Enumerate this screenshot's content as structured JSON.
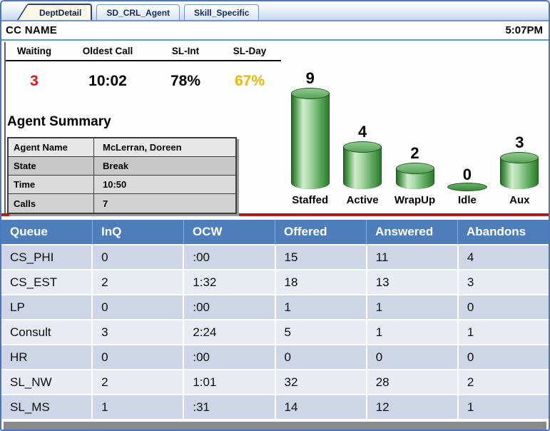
{
  "tabs": [
    {
      "label": "DeptDetail",
      "active": true
    },
    {
      "label": "SD_CRL_Agent",
      "active": false
    },
    {
      "label": "Skill_Specific",
      "active": false
    }
  ],
  "title_bar": {
    "title": "CC NAME",
    "time": "5:07PM"
  },
  "stats": {
    "columns": [
      {
        "label": "Waiting",
        "value": "3",
        "value_color": "#e01414"
      },
      {
        "label": "Oldest Call",
        "value": "10:02",
        "value_color": "#000000"
      },
      {
        "label": "SL-Int",
        "value": "78%",
        "value_color": "#000000"
      },
      {
        "label": "SL-Day",
        "value": "67%",
        "value_color": "#f0b400"
      }
    ]
  },
  "agent_summary": {
    "title": "Agent Summary",
    "rows": [
      {
        "label": "Agent Name",
        "value": "McLerran, Doreen"
      },
      {
        "label": "State",
        "value": "Break"
      },
      {
        "label": "Time",
        "value": "10:50"
      },
      {
        "label": "Calls",
        "value": "7"
      }
    ]
  },
  "chart_data": {
    "type": "bar",
    "categories": [
      "Staffed",
      "Active",
      "WrapUp",
      "Idle",
      "Aux"
    ],
    "values": [
      9,
      4,
      2,
      0,
      3
    ],
    "title": "",
    "xlabel": "",
    "ylabel": "",
    "ylim": [
      0,
      9
    ],
    "data_labels": true,
    "bar_shape": "3d-cylinder",
    "bar_color": "#3f9a3f",
    "grid": false,
    "legend": false
  },
  "queue_table": {
    "headers": [
      "Queue",
      "InQ",
      "OCW",
      "Offered",
      "Answered",
      "Abandons"
    ],
    "rows": [
      [
        "CS_PHI",
        "0",
        ":00",
        "15",
        "11",
        "4"
      ],
      [
        "CS_EST",
        "2",
        "1:32",
        "18",
        "13",
        "3"
      ],
      [
        "LP",
        "0",
        ":00",
        "1",
        "1",
        "0"
      ],
      [
        "Consult",
        "3",
        "2:24",
        "5",
        "1",
        "1"
      ],
      [
        "HR",
        "0",
        ":00",
        "0",
        "0",
        "0"
      ],
      [
        "SL_NW",
        "2",
        "1:01",
        "32",
        "28",
        "2"
      ],
      [
        "SL_MS",
        "1",
        ":31",
        "14",
        "12",
        "1"
      ]
    ]
  },
  "colors": {
    "header_blue": "#4d7ebb",
    "row_dark": "#ced5e6",
    "row_light": "#e9ebf3",
    "divider_red": "#b01f24",
    "waiting_red": "#e01414",
    "sl_day_gold": "#f0b400",
    "cylinder_green": "#3f9a3f",
    "window_border_blue": "#4a78c0"
  }
}
